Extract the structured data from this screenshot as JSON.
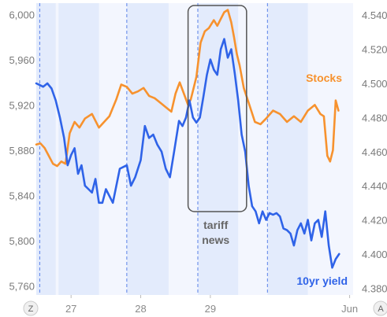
{
  "chart_data": {
    "type": "line",
    "title": "",
    "xlabel": "",
    "ylabel": "",
    "xlim": [
      26.5,
      31.05
    ],
    "x_ticks": [
      {
        "x": 27,
        "label": "27"
      },
      {
        "x": 28,
        "label": "28"
      },
      {
        "x": 29,
        "label": "29"
      },
      {
        "x": 31,
        "label": "Jun"
      }
    ],
    "y_left": {
      "min": 5752,
      "max": 6010,
      "ticks": [
        "5,760",
        "5,800",
        "5,840",
        "5,880",
        "5,920",
        "5,960",
        "6,000"
      ]
    },
    "y_right": {
      "min": 4.376,
      "max": 4.547,
      "ticks": [
        "4.380",
        "4.400",
        "4.420",
        "4.440",
        "4.460",
        "4.480",
        "4.500",
        "4.520",
        "4.540"
      ]
    },
    "sessions": [
      {
        "start": 26.5,
        "end": 26.78
      },
      {
        "start": 26.82,
        "end": 27.4
      },
      {
        "start": 27.8,
        "end": 28.4
      },
      {
        "start": 28.82,
        "end": 29.4
      },
      {
        "start": 29.82,
        "end": 30.4
      }
    ],
    "session_dividers": [
      26.55,
      27.8,
      28.82,
      29.82
    ],
    "annotation": {
      "text_line1": "tariff",
      "text_line2": "news",
      "x_start": 28.68,
      "x_end": 29.52
    },
    "series": [
      {
        "name": "Stocks",
        "axis": "left",
        "color": "#f7922e",
        "x": [
          26.5,
          26.56,
          26.62,
          26.68,
          26.74,
          26.8,
          26.86,
          26.92,
          26.98,
          27.05,
          27.12,
          27.2,
          27.3,
          27.4,
          27.55,
          27.65,
          27.72,
          27.8,
          27.88,
          27.96,
          28.04,
          28.12,
          28.2,
          28.28,
          28.36,
          28.44,
          28.5,
          28.56,
          28.62,
          28.68,
          28.72,
          28.76,
          28.8,
          28.86,
          28.92,
          28.98,
          29.05,
          29.1,
          29.15,
          29.2,
          29.25,
          29.3,
          29.34,
          29.38,
          29.42,
          29.48,
          29.56,
          29.64,
          29.72,
          29.8,
          29.9,
          30.0,
          30.1,
          30.2,
          30.3,
          30.4,
          30.5,
          30.58,
          30.63,
          30.68,
          30.72,
          30.76,
          30.8,
          30.84
        ],
        "values": [
          5885,
          5886,
          5882,
          5875,
          5868,
          5866,
          5870,
          5868,
          5895,
          5905,
          5900,
          5908,
          5912,
          5900,
          5910,
          5925,
          5938,
          5936,
          5930,
          5932,
          5935,
          5928,
          5926,
          5922,
          5918,
          5914,
          5930,
          5940,
          5930,
          5920,
          5925,
          5935,
          5945,
          5975,
          5985,
          5988,
          5995,
          5990,
          5996,
          6002,
          6004,
          5993,
          5980,
          5965,
          5955,
          5935,
          5920,
          5905,
          5903,
          5908,
          5915,
          5912,
          5905,
          5910,
          5905,
          5915,
          5920,
          5912,
          5910,
          5875,
          5870,
          5880,
          5924,
          5915
        ]
      },
      {
        "name": "10yr yield",
        "axis": "right",
        "color": "#2f63e8",
        "x": [
          26.5,
          26.55,
          26.6,
          26.66,
          26.72,
          26.78,
          26.84,
          26.9,
          26.95,
          27.0,
          27.05,
          27.1,
          27.15,
          27.2,
          27.25,
          27.3,
          27.35,
          27.4,
          27.45,
          27.5,
          27.55,
          27.6,
          27.65,
          27.7,
          27.75,
          27.8,
          27.86,
          27.92,
          28.0,
          28.06,
          28.12,
          28.18,
          28.24,
          28.3,
          28.36,
          28.42,
          28.48,
          28.55,
          28.6,
          28.65,
          28.7,
          28.75,
          28.8,
          28.85,
          28.9,
          28.95,
          29.0,
          29.05,
          29.1,
          29.15,
          29.2,
          29.25,
          29.3,
          29.35,
          29.4,
          29.45,
          29.5,
          29.55,
          29.6,
          29.65,
          29.7,
          29.75,
          29.8,
          29.85,
          29.9,
          29.95,
          30.0,
          30.05,
          30.1,
          30.15,
          30.2,
          30.25,
          30.3,
          30.35,
          30.4,
          30.45,
          30.5,
          30.55,
          30.6,
          30.65,
          30.7,
          30.75,
          30.8,
          30.85
        ],
        "values": [
          4.5,
          4.499,
          4.498,
          4.5,
          4.497,
          4.49,
          4.48,
          4.468,
          4.452,
          4.458,
          4.462,
          4.447,
          4.452,
          4.44,
          4.438,
          4.436,
          4.444,
          4.43,
          4.43,
          4.438,
          4.434,
          4.43,
          4.44,
          4.45,
          4.451,
          4.452,
          4.44,
          4.445,
          4.455,
          4.475,
          4.468,
          4.47,
          4.464,
          4.46,
          4.45,
          4.445,
          4.46,
          4.478,
          4.475,
          4.48,
          4.49,
          4.48,
          4.477,
          4.48,
          4.492,
          4.505,
          4.514,
          4.508,
          4.505,
          4.52,
          4.526,
          4.515,
          4.52,
          4.506,
          4.49,
          4.47,
          4.46,
          4.44,
          4.428,
          4.425,
          4.418,
          4.425,
          4.42,
          4.424,
          4.423,
          4.424,
          4.422,
          4.415,
          4.414,
          4.412,
          4.405,
          4.414,
          4.418,
          4.412,
          4.42,
          4.408,
          4.418,
          4.42,
          4.41,
          4.425,
          4.405,
          4.392,
          4.397,
          4.4
        ]
      }
    ]
  },
  "bottom_bar": {
    "left_button": "Z",
    "right_button": "A"
  }
}
